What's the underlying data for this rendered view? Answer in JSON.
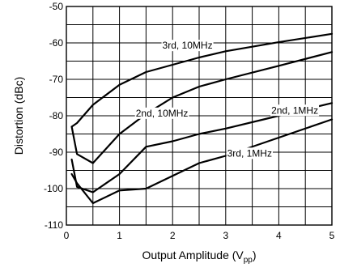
{
  "chart_data": {
    "type": "line",
    "xlabel_main": "Output Amplitude (V",
    "xlabel_sub": "pp",
    "xlabel_end": ")",
    "ylabel": "Distortion (dBc)",
    "xlim": [
      0,
      5
    ],
    "ylim": [
      -110,
      -50
    ],
    "grid": true,
    "xticks": [
      0,
      1,
      2,
      3,
      4,
      5
    ],
    "yticks": [
      -50,
      -60,
      -70,
      -80,
      -90,
      -100,
      -110
    ],
    "series": [
      {
        "name": "3rd, 10MHz",
        "x": [
          0.1,
          0.2,
          0.5,
          1.0,
          1.5,
          2.0,
          2.5,
          3.0,
          4.0,
          5.0
        ],
        "y": [
          -83,
          -82,
          -77,
          -71.5,
          -68,
          -66,
          -64,
          -62.3,
          -59.8,
          -57.5
        ]
      },
      {
        "name": "2nd, 10MHz",
        "x": [
          0.1,
          0.2,
          0.5,
          1.0,
          1.5,
          2.0,
          2.5,
          3.0,
          4.0,
          5.0
        ],
        "y": [
          -83,
          -90.5,
          -93,
          -85,
          -79.5,
          -75,
          -72,
          -70,
          -66.3,
          -62.5
        ]
      },
      {
        "name": "2nd, 1MHz",
        "x": [
          0.1,
          0.2,
          0.5,
          1.0,
          1.5,
          2.0,
          2.5,
          3.0,
          4.0,
          5.0
        ],
        "y": [
          -92,
          -99.5,
          -101,
          -96,
          -88.5,
          -87,
          -85,
          -83.5,
          -80,
          -76.5
        ]
      },
      {
        "name": "3rd, 1MHz",
        "x": [
          0.1,
          0.2,
          0.5,
          1.0,
          1.5,
          2.0,
          2.5,
          3.0,
          4.0,
          5.0
        ],
        "y": [
          -96,
          -98.5,
          -104,
          -100.5,
          -100,
          -96.5,
          -93,
          -91,
          -86,
          -81
        ]
      }
    ],
    "annotations": [
      {
        "text": "3rd, 10MHz",
        "x": 2.28,
        "y": -60.7
      },
      {
        "text": "2nd, 10MHz",
        "x": 1.8,
        "y": -79.3
      },
      {
        "text": "2nd, 1MHz",
        "x": 4.3,
        "y": -78.5
      },
      {
        "text": "3rd, 1MHz",
        "x": 3.45,
        "y": -90.3
      }
    ]
  }
}
